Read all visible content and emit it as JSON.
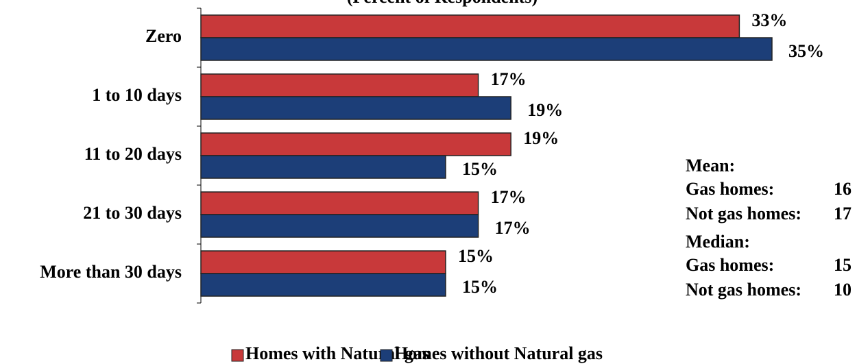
{
  "chart_data": {
    "type": "hbar",
    "title": "(Percent of Respondents)",
    "categories": [
      "Zero",
      "1 to 10 days",
      "11 to 20 days",
      "21 to 30 days",
      "More than 30 days"
    ],
    "series": [
      {
        "name": "Homes with Natural gas",
        "color": "#c8393a",
        "values": [
          33,
          17,
          19,
          17,
          15
        ],
        "value_labels": [
          "33%",
          "17%",
          "19%",
          "17%",
          "15%"
        ]
      },
      {
        "name": "Homes without Natural gas",
        "color": "#1c3e78",
        "values": [
          35,
          19,
          15,
          17,
          15
        ],
        "value_labels": [
          "35%",
          "19%",
          "15%",
          "17%",
          "15%"
        ]
      }
    ],
    "xlim": [
      0,
      40
    ],
    "legend": "bottom",
    "stats": [
      {
        "heading": "Mean:",
        "rows": [
          {
            "label": "Gas homes:",
            "value": 16
          },
          {
            "label": "Not gas homes:",
            "value": 17
          }
        ]
      },
      {
        "heading": "Median:",
        "rows": [
          {
            "label": "Gas homes:",
            "value": 15
          },
          {
            "label": "Not gas homes:",
            "value": 10
          }
        ]
      }
    ]
  }
}
